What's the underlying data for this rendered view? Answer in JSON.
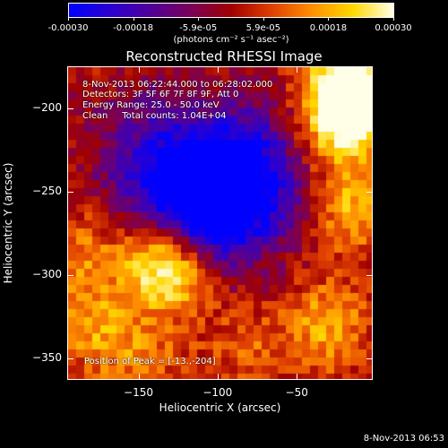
{
  "colorbar": {
    "tick_labels": [
      "-0.00030",
      "-0.00018",
      "-5.9e-05",
      "5.9e-05",
      "0.00018",
      "0.00030"
    ],
    "unit_label": "(photons cm⁻² s⁻¹ asec⁻²)",
    "colors": [
      "#0000ff",
      "#2a00d0",
      "#50009a",
      "#7a005a",
      "#a00000",
      "#e04000",
      "#ff9000",
      "#ffd800",
      "#ffffe8"
    ]
  },
  "chart_data": {
    "type": "heatmap",
    "title": "Reconstructed RHESSI Image",
    "xlabel": "Heliocentric X (arcsec)",
    "ylabel": "Heliocentric Y (arcsec)",
    "xlim": [
      -195,
      -2
    ],
    "ylim": [
      -363,
      -175
    ],
    "x_ticks": [
      -150,
      -100,
      -50
    ],
    "y_ticks": [
      -200,
      -250,
      -300,
      -350
    ],
    "x_tick_labels": [
      "−150",
      "−100",
      "−50"
    ],
    "y_tick_labels": [
      "−200",
      "−250",
      "−300",
      "−350"
    ],
    "zlim": [
      -0.0003,
      0.0003
    ],
    "peak_position": [
      -13,
      -204
    ],
    "features": [
      {
        "x": -100,
        "y": -255,
        "level": -0.00028
      },
      {
        "x": -115,
        "y": -240,
        "level": -0.00015
      },
      {
        "x": -85,
        "y": -245,
        "level": -0.00012
      },
      {
        "x": -140,
        "y": -260,
        "level": -0.0001
      },
      {
        "x": -60,
        "y": -225,
        "level": -0.0001
      },
      {
        "x": -150,
        "y": -215,
        "level": -8e-05
      },
      {
        "x": -13,
        "y": -204,
        "level": 0.0003
      },
      {
        "x": -20,
        "y": -185,
        "level": 0.00028
      },
      {
        "x": -140,
        "y": -290,
        "level": 0.00022
      },
      {
        "x": -125,
        "y": -300,
        "level": 0.00018
      },
      {
        "x": -30,
        "y": -330,
        "level": 0.00016
      },
      {
        "x": -15,
        "y": -260,
        "level": 0.00018
      },
      {
        "x": -185,
        "y": -285,
        "level": 0.00012
      },
      {
        "x": -180,
        "y": -330,
        "level": 0.00014
      },
      {
        "x": -150,
        "y": -350,
        "level": 0.0001
      },
      {
        "x": -80,
        "y": -345,
        "level": 8e-05
      },
      {
        "x": -35,
        "y": -220,
        "level": 0.00012
      }
    ]
  },
  "annotations": {
    "time_range": "8-Nov-2013 06:22:44.000 to 06:28:02.000",
    "detectors": "Detectors: 3F 5F 6F 7F 8F 9F, Att 0",
    "energy_range": "Energy Range: 25.0 - 50.0 keV",
    "method_counts": "Clean     Total counts: 1.04E+04",
    "peak": "Position of Peak = [-13.,-204]"
  },
  "footer": "8-Nov-2013 06:53"
}
